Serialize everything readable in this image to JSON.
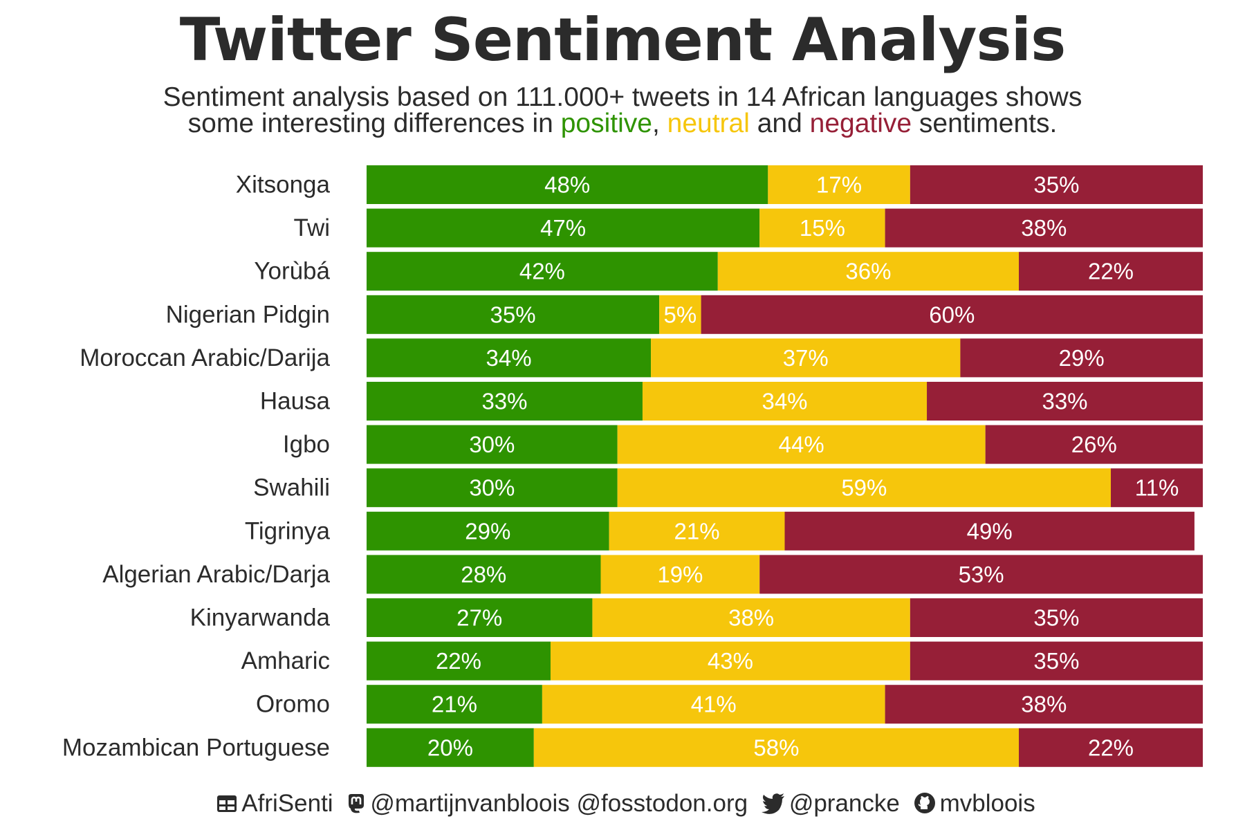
{
  "title": "Twitter Sentiment Analysis",
  "subtitle": {
    "line1": "Sentiment analysis based on 111.000+ tweets in 14 African languages shows",
    "line2_prefix": "some interesting differences in ",
    "positive_word": "positive",
    "sep1": ", ",
    "neutral_word": "neutral",
    "sep2": " and ",
    "negative_word": "negative",
    "line2_suffix": " sentiments."
  },
  "colors": {
    "positive": "#2e9300",
    "neutral": "#f6c60c",
    "negative": "#961f37"
  },
  "chart_data": {
    "type": "bar",
    "orientation": "horizontal",
    "stacked": true,
    "categories": [
      "Xitsonga",
      "Twi",
      "Yorùbá",
      "Nigerian Pidgin",
      "Moroccan Arabic/Darija",
      "Hausa",
      "Igbo",
      "Swahili",
      "Tigrinya",
      "Algerian Arabic/Darja",
      "Kinyarwanda",
      "Amharic",
      "Oromo",
      "Mozambican Portuguese"
    ],
    "series": [
      {
        "name": "positive",
        "color": "#2e9300",
        "values": [
          48,
          47,
          42,
          35,
          34,
          33,
          30,
          30,
          29,
          28,
          27,
          22,
          21,
          20
        ]
      },
      {
        "name": "neutral",
        "color": "#f6c60c",
        "values": [
          17,
          15,
          36,
          5,
          37,
          34,
          44,
          59,
          21,
          19,
          38,
          43,
          41,
          58
        ]
      },
      {
        "name": "negative",
        "color": "#961f37",
        "values": [
          35,
          38,
          22,
          60,
          29,
          33,
          26,
          11,
          49,
          53,
          35,
          35,
          38,
          22
        ]
      }
    ],
    "value_suffix": "%",
    "xlim": [
      0,
      100
    ],
    "grid": false,
    "legend": "none"
  },
  "caption": {
    "source_icon": "table-icon",
    "source": "AfriSenti",
    "mastodon_icon": "mastodon-icon",
    "mastodon": "@martijnvanbloois @fosstodon.org",
    "twitter_icon": "twitter-icon",
    "twitter": "@prancke",
    "github_icon": "github-icon",
    "github": "mvbloois"
  }
}
